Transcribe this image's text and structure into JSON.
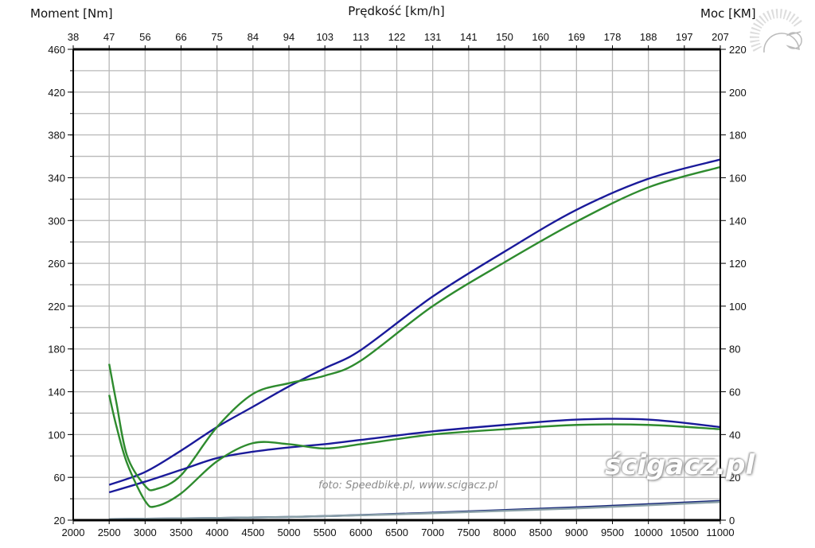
{
  "chart_data": {
    "type": "line",
    "title": "",
    "ylabel_left": "Moment [Nm]",
    "ylabel_right": "Moc [KM]",
    "xlabel_top": "Prędkość [km/h]",
    "xlabel_bottom": "",
    "x_unit": "rpm",
    "xlim": [
      2000,
      11000
    ],
    "ylim_left": [
      20,
      460
    ],
    "ylim_right": [
      0,
      220
    ],
    "x_ticks": [
      "2000",
      "2500",
      "3000",
      "3500",
      "4000",
      "4500",
      "5000",
      "5500",
      "6000",
      "6500",
      "7000",
      "7500",
      "8000",
      "8500",
      "9000",
      "9500",
      "10000",
      "10500",
      "11000"
    ],
    "x_ticks_top": [
      "38",
      "47",
      "56",
      "66",
      "75",
      "84",
      "94",
      "103",
      "113",
      "122",
      "131",
      "141",
      "150",
      "160",
      "169",
      "178",
      "188",
      "197",
      "207"
    ],
    "y_ticks_left": [
      "460",
      "420",
      "380",
      "340",
      "300",
      "260",
      "220",
      "180",
      "140",
      "100",
      "60",
      "20"
    ],
    "y_ticks_right": [
      "220",
      "200",
      "180",
      "160",
      "140",
      "120",
      "100",
      "80",
      "60",
      "40",
      "20",
      "0"
    ],
    "grid": true,
    "legend": "none",
    "series_units_note": "values in left-axis (Nm) scale",
    "series": [
      {
        "name": "power-blue",
        "color": "#1a1a9a",
        "x": [
          2500,
          3000,
          3500,
          4000,
          4500,
          5000,
          5500,
          6000,
          7000,
          8000,
          9000,
          10000,
          11000
        ],
        "y": [
          53,
          65,
          85,
          107,
          126,
          145,
          162,
          179,
          229,
          271,
          310,
          339,
          357
        ]
      },
      {
        "name": "power-green",
        "color": "#2e8b2e",
        "x": [
          2500,
          2600,
          2750,
          3000,
          3150,
          3500,
          4000,
          4500,
          5000,
          5500,
          6000,
          7000,
          8000,
          9000,
          10000,
          11000
        ],
        "y": [
          166,
          130,
          80,
          52,
          49,
          62,
          107,
          138,
          148,
          155,
          169,
          220,
          261,
          299,
          331,
          350
        ]
      },
      {
        "name": "torque-blue",
        "color": "#1a1a9a",
        "x": [
          2500,
          3000,
          3500,
          4000,
          4500,
          5000,
          5500,
          6000,
          7000,
          8000,
          9000,
          10000,
          11000
        ],
        "y": [
          46,
          56,
          67,
          78,
          84,
          88,
          91,
          95,
          103,
          109,
          114,
          114,
          107
        ]
      },
      {
        "name": "torque-green",
        "color": "#2e8b2e",
        "x": [
          2500,
          2600,
          2750,
          3000,
          3150,
          3500,
          4000,
          4500,
          5000,
          5500,
          6000,
          7000,
          8000,
          9000,
          10000,
          11000
        ],
        "y": [
          137,
          108,
          73,
          38,
          33,
          45,
          75,
          92,
          91,
          87,
          91,
          100,
          105,
          109,
          109,
          105
        ]
      },
      {
        "name": "base-blue",
        "color": "#1a2a7a",
        "x": [
          2500,
          5000,
          7000,
          9000,
          11000
        ],
        "y": [
          21,
          23,
          27,
          32,
          38
        ]
      },
      {
        "name": "base-gray",
        "color": "#8aa0a8",
        "x": [
          2500,
          5000,
          7000,
          9000,
          11000
        ],
        "y": [
          21,
          23,
          26.5,
          31,
          37
        ]
      }
    ]
  },
  "watermarks": {
    "foto": "foto: Speedbike.pl, www.scigacz.pl",
    "logo": "ścigacz.pl"
  }
}
